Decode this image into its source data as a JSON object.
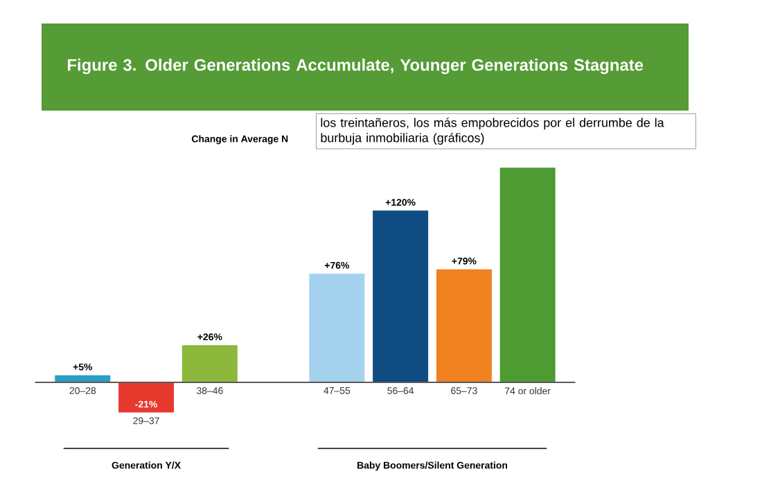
{
  "chart_data": {
    "type": "bar",
    "title": "Figure 3. Older Generations Accumulate, Younger Generations Stagnate",
    "subtitle": "Change in Average N",
    "categories": [
      "20–28",
      "29–37",
      "38–46",
      null,
      "47–55",
      "56–64",
      "65–73",
      "74 or older"
    ],
    "values": [
      5,
      -21,
      26,
      null,
      76,
      120,
      79,
      150
    ],
    "value_labels": [
      "+5%",
      "-21%",
      "+26%",
      null,
      "+76%",
      "+120%",
      "+79%",
      null
    ],
    "colors": [
      "#2b9fc6",
      "#e8392f",
      "#8cb83c",
      "#ffffff",
      "#a5d2ef",
      "#0f4c81",
      "#f0821f",
      "#4e9b34"
    ],
    "annotations": [
      "Generation Y/X",
      "Baby Boomers/Silent Generation",
      "los treintañeros, los más empobrecidos por el derrumbe de la burbuja inmobiliaria (gráficos)"
    ]
  }
}
